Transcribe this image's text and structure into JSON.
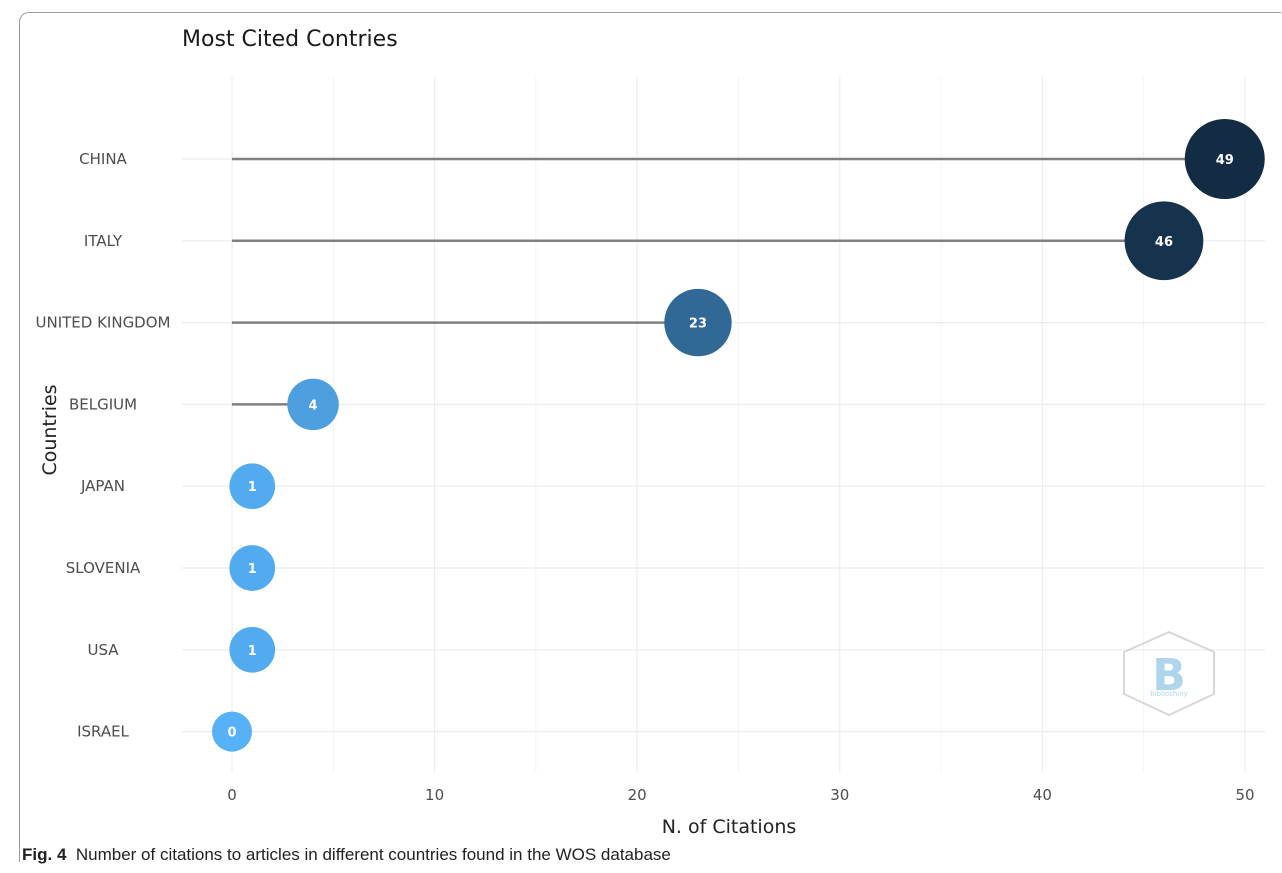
{
  "chart_data": {
    "type": "lollipop",
    "title": "Most Cited Contries",
    "xlabel": "N. of Citations",
    "ylabel": "Countries",
    "categories": [
      "CHINA",
      "ITALY",
      "UNITED KINGDOM",
      "BELGIUM",
      "JAPAN",
      "SLOVENIA",
      "USA",
      "ISRAEL"
    ],
    "values": [
      49,
      46,
      23,
      4,
      1,
      1,
      1,
      0
    ],
    "xlim": [
      0,
      50
    ],
    "xticks": [
      0,
      10,
      20,
      30,
      40,
      50
    ],
    "grid": true,
    "colors": {
      "stem": "#808080",
      "low": "#56b1f7",
      "high": "#132b43",
      "grid": "#ececec",
      "axis_text": "#4d4d4d",
      "bubble_label": "#ffffff"
    }
  },
  "caption": {
    "fig_label": "Fig. 4",
    "text": "Number of citations to articles in different countries found in the WOS database"
  },
  "watermark": {
    "icon": "biblioshiny-logo-icon",
    "letter": "B",
    "text": "biblioshiny"
  }
}
